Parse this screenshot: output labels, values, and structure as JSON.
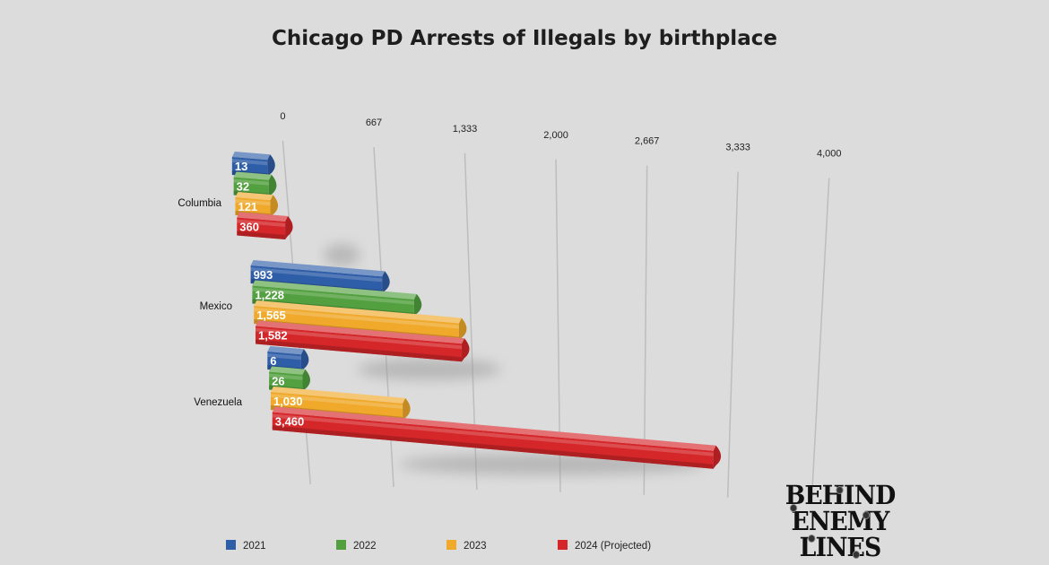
{
  "chart_data": {
    "type": "bar",
    "orientation": "horizontal",
    "title": "Chicago PD Arrests of Illegals by birthplace",
    "categories": [
      "Columbia",
      "Mexico",
      "Venezuela"
    ],
    "series": [
      {
        "name": "2021",
        "color": "#2f5ea8",
        "values": [
          13,
          993,
          6
        ],
        "labels": [
          "13",
          "993",
          "6"
        ]
      },
      {
        "name": "2022",
        "color": "#52a03f",
        "values": [
          32,
          1228,
          26
        ],
        "labels": [
          "32",
          "1,228",
          "26"
        ]
      },
      {
        "name": "2023",
        "color": "#f0a92b",
        "values": [
          121,
          1565,
          1030
        ],
        "labels": [
          "121",
          "1,565",
          "1,030"
        ]
      },
      {
        "name": "2024 (Projected)",
        "color": "#d5262a",
        "values": [
          360,
          1582,
          3460
        ],
        "labels": [
          "360",
          "1,582",
          "3,460"
        ]
      }
    ],
    "ticks": [
      {
        "value": 0,
        "label": "0"
      },
      {
        "value": 667,
        "label": "667"
      },
      {
        "value": 1333,
        "label": "1,333"
      },
      {
        "value": 2000,
        "label": "2,000"
      },
      {
        "value": 2667,
        "label": "2,667"
      },
      {
        "value": 3333,
        "label": "3,333"
      },
      {
        "value": 4000,
        "label": "4,000"
      }
    ],
    "xlim": [
      0,
      4000
    ],
    "grid": true,
    "legend_position": "bottom",
    "perspective": "3d"
  },
  "branding": {
    "logo_lines": [
      "BEHIND",
      "ENEMY",
      "LINES"
    ]
  }
}
